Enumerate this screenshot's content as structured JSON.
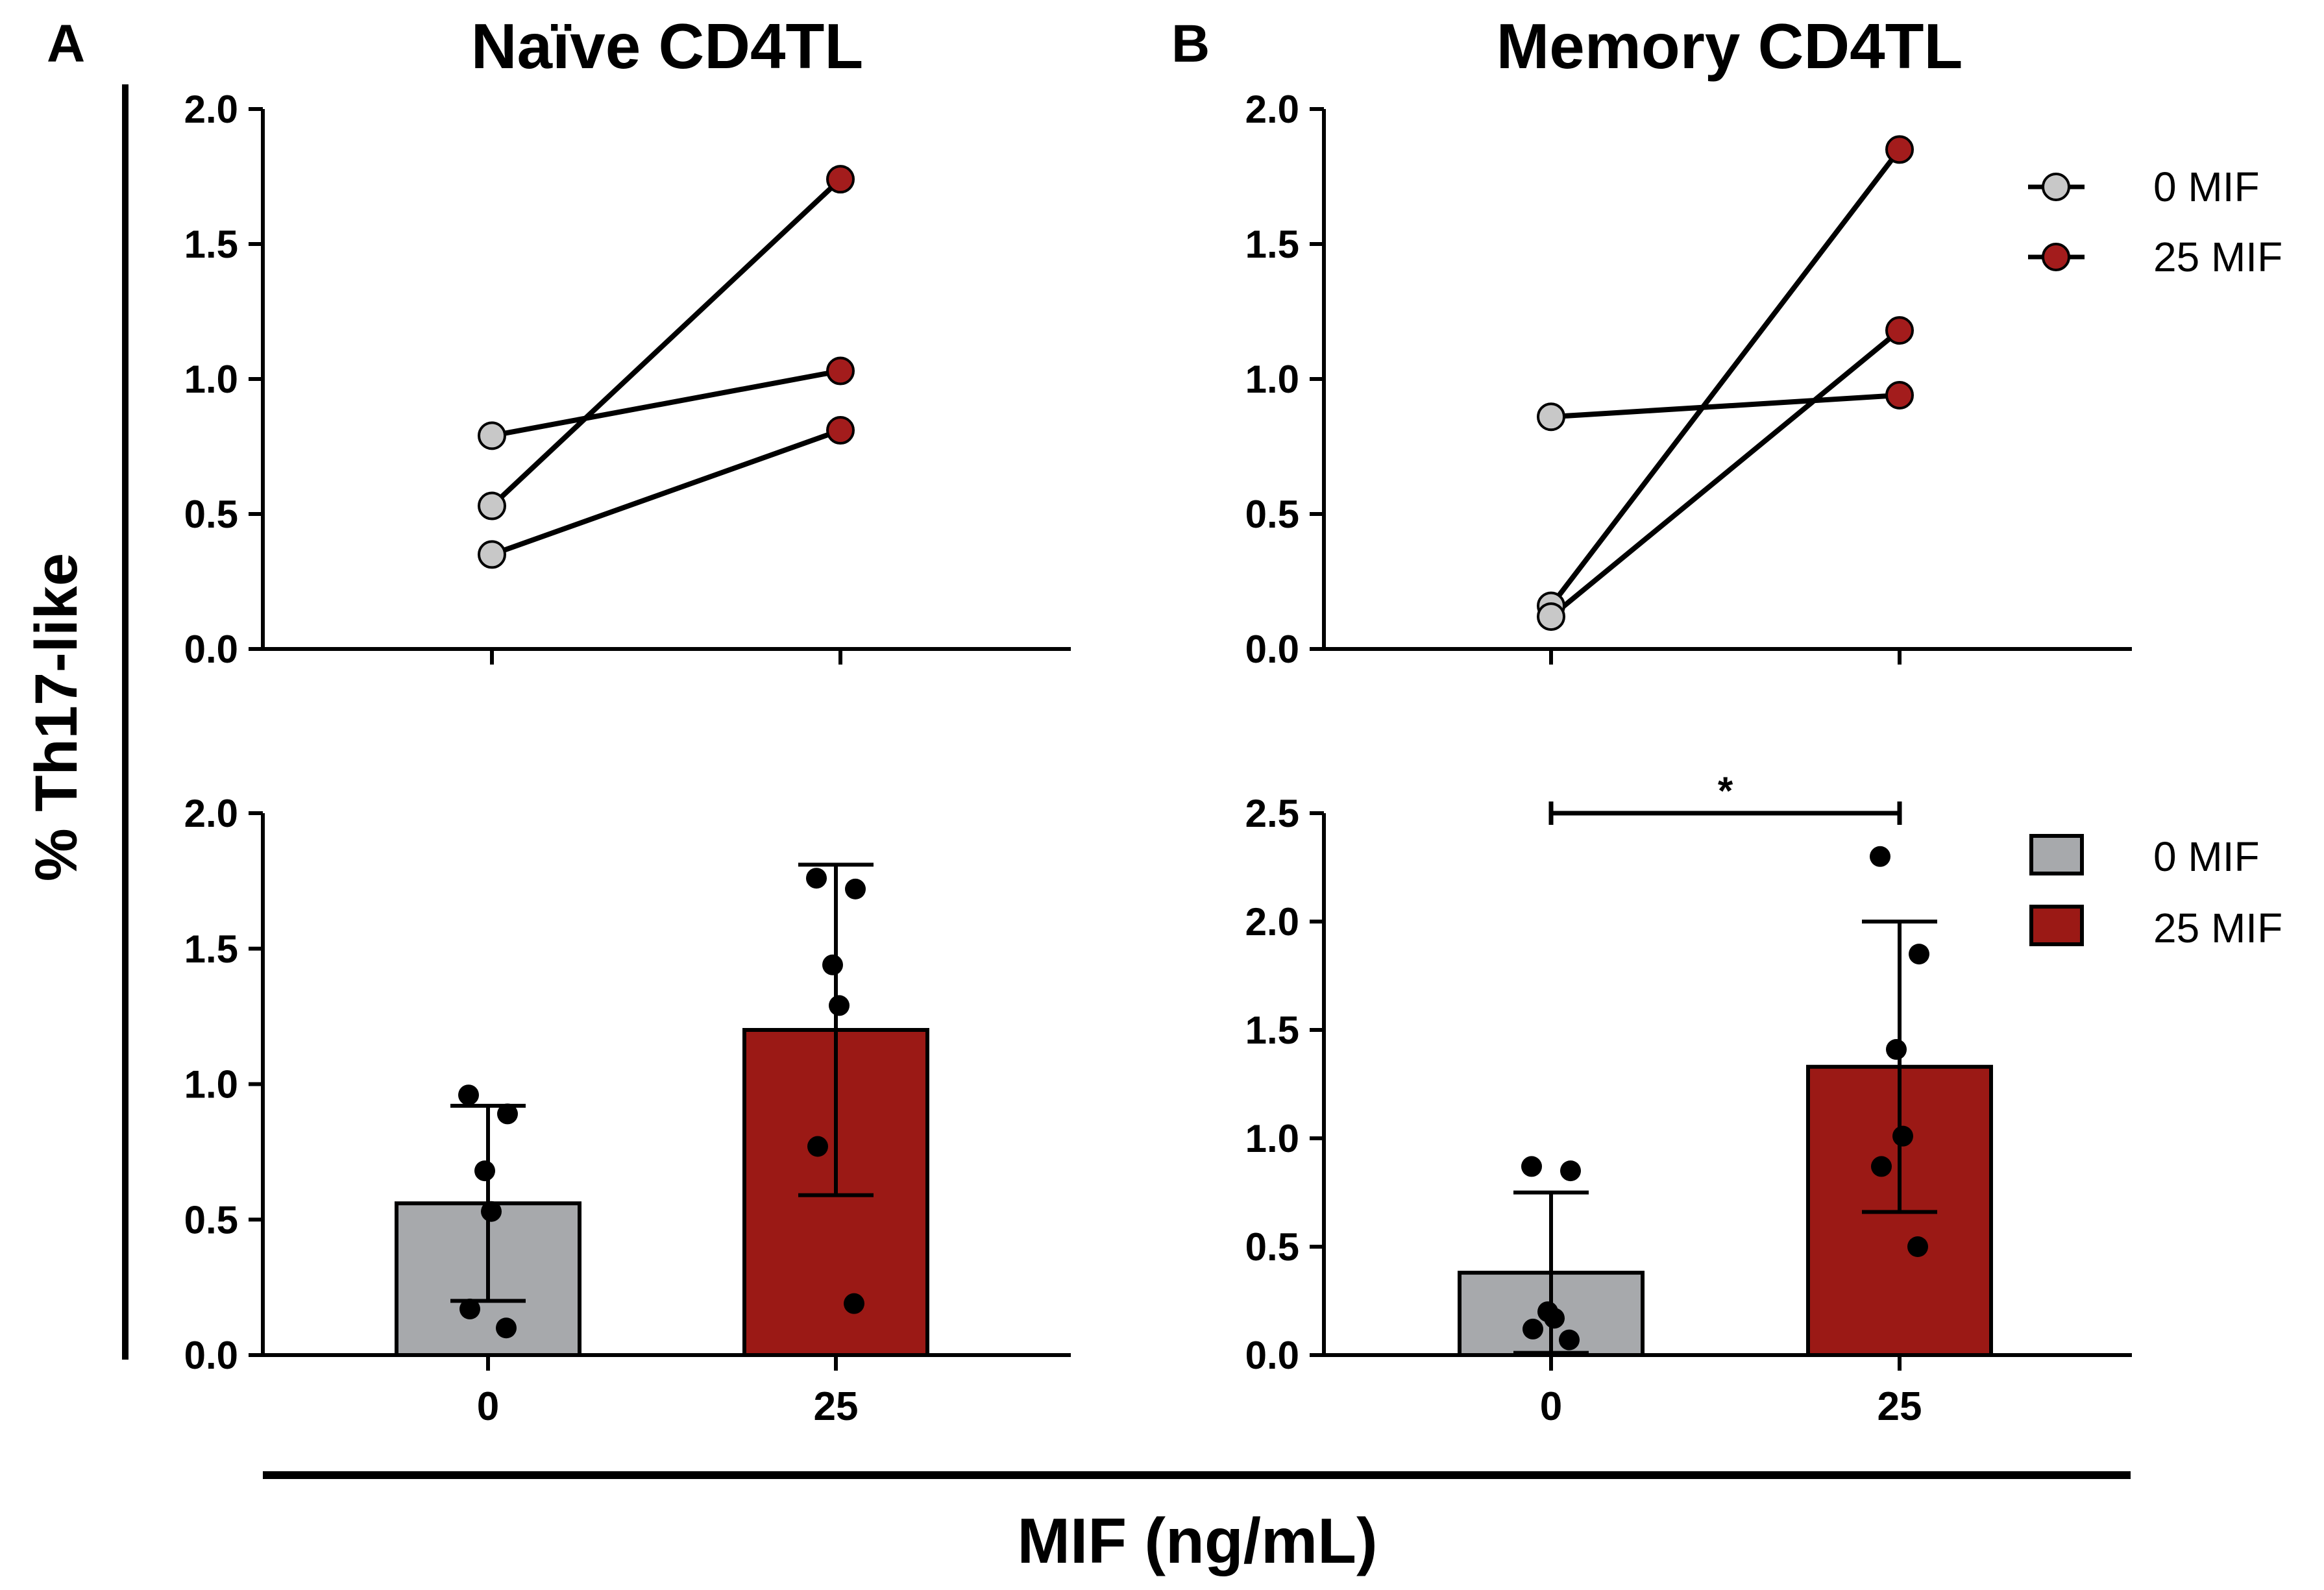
{
  "panel_labels": {
    "a": "A",
    "b": "B"
  },
  "titles": {
    "a": "Naïve CD4TL",
    "b": "Memory CD4TL"
  },
  "y_axis_label": "% Th17-like",
  "x_axis_label": "MIF (ng/mL)",
  "significance_marker": "*",
  "colors": {
    "mif_0": "#a7a9ac",
    "mif_25": "#9b1915",
    "axis": "#000000"
  },
  "legend_paired": [
    {
      "label": "0 MIF",
      "color": "#c8c8c8"
    },
    {
      "label": "25 MIF",
      "color": "#a31c1c"
    }
  ],
  "legend_bars": [
    {
      "label": "0 MIF",
      "color": "#a7a9ac"
    },
    {
      "label": "25 MIF",
      "color": "#9b1915"
    }
  ],
  "chart_data": [
    {
      "id": "a-top",
      "type": "scatter",
      "subtype": "paired-line",
      "title": "Naïve CD4TL",
      "categories": [
        "0",
        "25"
      ],
      "ylim": [
        0,
        2.0
      ],
      "yticks": [
        "0.0",
        "0.5",
        "1.0",
        "1.5",
        "2.0"
      ],
      "ylabel": "% Th17-like",
      "pairs": [
        [
          0.79,
          1.03
        ],
        [
          0.53,
          1.74
        ],
        [
          0.35,
          0.81
        ]
      ]
    },
    {
      "id": "b-top",
      "type": "scatter",
      "subtype": "paired-line",
      "title": "Memory CD4TL",
      "categories": [
        "0",
        "25"
      ],
      "ylim": [
        0,
        2.0
      ],
      "yticks": [
        "0.0",
        "0.5",
        "1.0",
        "1.5",
        "2.0"
      ],
      "ylabel": "% Th17-like",
      "pairs": [
        [
          0.86,
          0.94
        ],
        [
          0.16,
          1.85
        ],
        [
          0.12,
          1.18
        ]
      ]
    },
    {
      "id": "a-bottom",
      "type": "bar",
      "categories": [
        "0",
        "25"
      ],
      "xlabel": "MIF (ng/mL)",
      "ylabel": "% Th17-like",
      "ylim": [
        0,
        2.0
      ],
      "yticks": [
        "0.0",
        "0.5",
        "1.0",
        "1.5",
        "2.0"
      ],
      "values": [
        0.56,
        1.2
      ],
      "error": [
        0.36,
        0.61
      ],
      "points": [
        [
          0.96,
          0.89,
          0.68,
          0.53,
          0.17,
          0.1
        ],
        [
          1.76,
          1.72,
          1.44,
          1.29,
          0.77,
          0.19
        ]
      ]
    },
    {
      "id": "b-bottom",
      "type": "bar",
      "categories": [
        "0",
        "25"
      ],
      "xlabel": "MIF (ng/mL)",
      "ylabel": "% Th17-like",
      "ylim": [
        0,
        2.5
      ],
      "yticks": [
        "0.0",
        "0.5",
        "1.0",
        "1.5",
        "2.0",
        "2.5"
      ],
      "values": [
        0.38,
        1.33
      ],
      "error": [
        0.37,
        0.67
      ],
      "points": [
        [
          0.87,
          0.85,
          0.2,
          0.17,
          0.12,
          0.07
        ],
        [
          2.3,
          1.85,
          1.41,
          1.01,
          0.87,
          0.5
        ]
      ],
      "significance": "*"
    }
  ]
}
